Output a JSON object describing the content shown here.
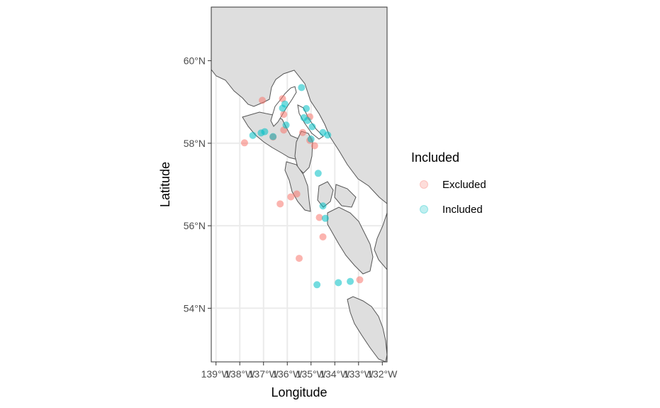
{
  "chart_data": {
    "type": "scatter",
    "xlabel": "Longitude",
    "ylabel": "Latitude",
    "xlim": [
      -139.2,
      -131.8
    ],
    "ylim": [
      52.7,
      61.3
    ],
    "x_ticks": [
      {
        "value": -139,
        "label": "139°W"
      },
      {
        "value": -138,
        "label": "138°W"
      },
      {
        "value": -137,
        "label": "137°W"
      },
      {
        "value": -136,
        "label": "136°W"
      },
      {
        "value": -135,
        "label": "135°W"
      },
      {
        "value": -134,
        "label": "134°W"
      },
      {
        "value": -133,
        "label": "133°W"
      },
      {
        "value": -132,
        "label": "132°W"
      }
    ],
    "y_ticks": [
      {
        "value": 54,
        "label": "54°N"
      },
      {
        "value": 56,
        "label": "56°N"
      },
      {
        "value": 58,
        "label": "58°N"
      },
      {
        "value": 60,
        "label": "60°N"
      }
    ],
    "grid": true,
    "legend": {
      "title": "Included",
      "placement": "right",
      "entries": [
        {
          "label": "Excluded",
          "color": "#F8766D"
        },
        {
          "label": "Included",
          "color": "#00BFC4"
        }
      ]
    },
    "colors": {
      "land": "#dedede",
      "land_stroke": "#555555",
      "grid": "#ebebeb",
      "panel_border": "#333333"
    },
    "series": [
      {
        "name": "Excluded",
        "color": "#F8766D",
        "points": [
          {
            "x": -137.05,
            "y": 59.04
          },
          {
            "x": -136.2,
            "y": 59.08
          },
          {
            "x": -136.15,
            "y": 58.7
          },
          {
            "x": -136.15,
            "y": 58.32
          },
          {
            "x": -136.6,
            "y": 58.15
          },
          {
            "x": -135.35,
            "y": 58.26
          },
          {
            "x": -135.05,
            "y": 58.64
          },
          {
            "x": -135.05,
            "y": 58.07
          },
          {
            "x": -134.85,
            "y": 57.94
          },
          {
            "x": -137.8,
            "y": 58.01
          },
          {
            "x": -135.6,
            "y": 56.77
          },
          {
            "x": -135.85,
            "y": 56.7
          },
          {
            "x": -136.3,
            "y": 56.53
          },
          {
            "x": -134.65,
            "y": 56.2
          },
          {
            "x": -134.5,
            "y": 55.73
          },
          {
            "x": -135.5,
            "y": 55.21
          },
          {
            "x": -132.95,
            "y": 54.69
          }
        ]
      },
      {
        "name": "Included",
        "color": "#00BFC4",
        "points": [
          {
            "x": -135.4,
            "y": 59.35
          },
          {
            "x": -136.1,
            "y": 58.95
          },
          {
            "x": -136.2,
            "y": 58.85
          },
          {
            "x": -135.2,
            "y": 58.84
          },
          {
            "x": -135.3,
            "y": 58.62
          },
          {
            "x": -135.15,
            "y": 58.55
          },
          {
            "x": -134.95,
            "y": 58.4
          },
          {
            "x": -134.5,
            "y": 58.26
          },
          {
            "x": -134.3,
            "y": 58.2
          },
          {
            "x": -136.05,
            "y": 58.44
          },
          {
            "x": -137.45,
            "y": 58.19
          },
          {
            "x": -137.1,
            "y": 58.25
          },
          {
            "x": -136.95,
            "y": 58.28
          },
          {
            "x": -136.6,
            "y": 58.16
          },
          {
            "x": -135.0,
            "y": 58.1
          },
          {
            "x": -134.7,
            "y": 57.27
          },
          {
            "x": -134.5,
            "y": 56.48
          },
          {
            "x": -134.4,
            "y": 56.18
          },
          {
            "x": -134.75,
            "y": 54.57
          },
          {
            "x": -133.85,
            "y": 54.62
          },
          {
            "x": -133.35,
            "y": 54.65
          }
        ]
      }
    ]
  }
}
